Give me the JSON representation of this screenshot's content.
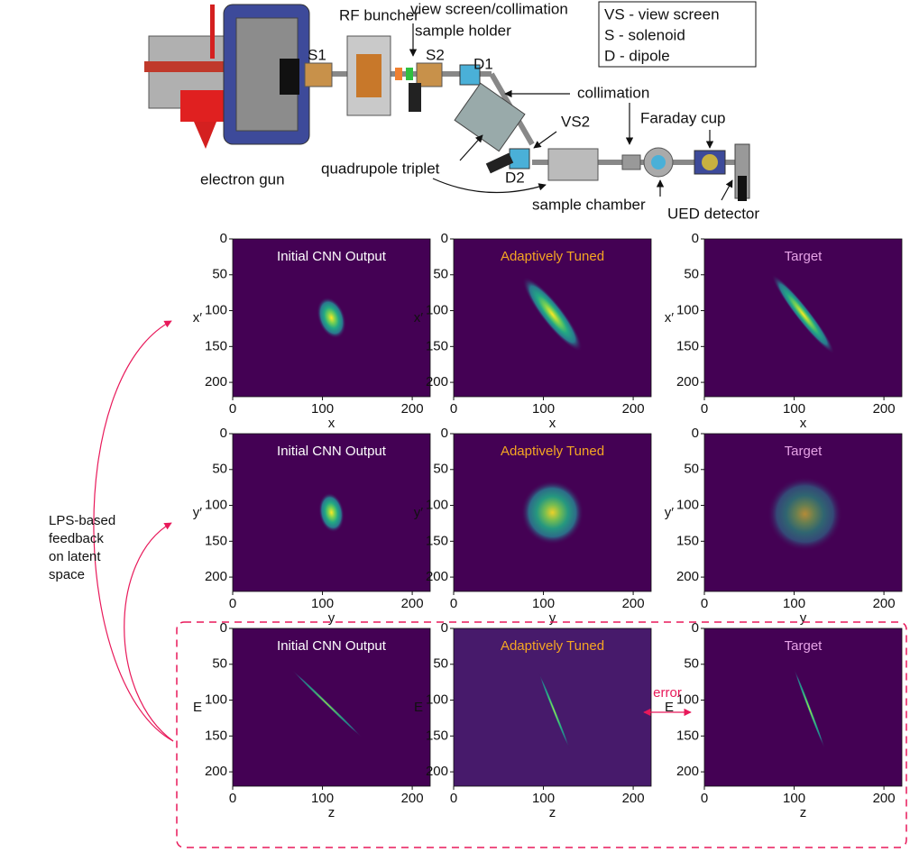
{
  "beamline": {
    "labels": [
      "RF buncher",
      "view screen/collimation",
      "sample holder",
      "S1",
      "S2",
      "D1",
      "collimation",
      "Faraday cup",
      "VS2",
      "quadrupole triplet",
      "electron gun",
      "D2",
      "sample chamber",
      "UED detector"
    ],
    "legend": [
      "VS - view screen",
      "S - solenoid",
      "D - dipole"
    ]
  },
  "axes": {
    "yticks": [
      "0",
      "50",
      "100",
      "150",
      "200"
    ],
    "xticks": [
      "0",
      "100",
      "200"
    ]
  },
  "panels": [
    {
      "title": "Initial CNN Output",
      "x_label": "x",
      "y_label": "x′"
    },
    {
      "title": "Adaptively Tuned",
      "x_label": "x",
      "y_label": "x′"
    },
    {
      "title": "Target",
      "x_label": "x",
      "y_label": "x′"
    },
    {
      "title": "Initial CNN Output",
      "x_label": "y",
      "y_label": "y′"
    },
    {
      "title": "Adaptively Tuned",
      "x_label": "y",
      "y_label": "y′"
    },
    {
      "title": "Target",
      "x_label": "y",
      "y_label": "y′"
    },
    {
      "title": "Initial CNN Output",
      "x_label": "z",
      "y_label": "E"
    },
    {
      "title": "Adaptively Tuned",
      "x_label": "z",
      "y_label": "E"
    },
    {
      "title": "Target",
      "x_label": "z",
      "y_label": "E"
    }
  ],
  "feedback": {
    "lines": [
      "LPS-based",
      "feedback",
      "on latent",
      "space"
    ]
  },
  "error_label": "error"
}
